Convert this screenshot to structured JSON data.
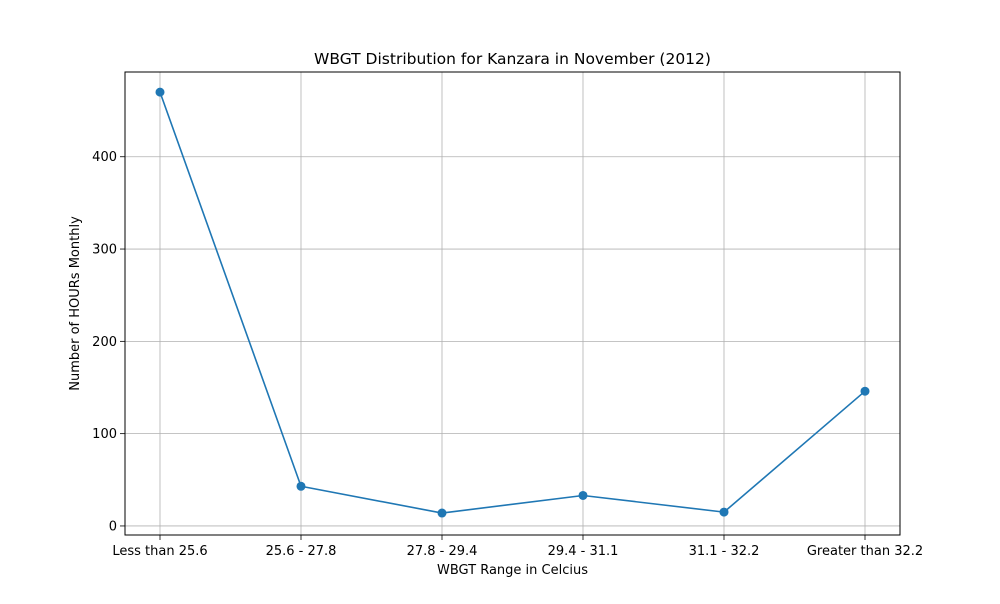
{
  "chart_data": {
    "type": "line",
    "title": "WBGT Distribution for Kanzara in November (2012)",
    "xlabel": "WBGT Range in Celcius",
    "ylabel": "Number of HOURs Monthly",
    "categories": [
      "Less than 25.6",
      "25.6 - 27.8",
      "27.8 - 29.4",
      "29.4 - 31.1",
      "31.1 - 32.2",
      "Greater than 32.2"
    ],
    "series": [
      {
        "values": [
          470,
          43,
          14,
          33,
          15,
          146
        ]
      }
    ],
    "ylim": [
      -9.8,
      491.8
    ],
    "yticks": [
      0,
      100,
      200,
      300,
      400
    ],
    "grid": true,
    "marker": "circle",
    "line_color": "#1f77b4"
  }
}
